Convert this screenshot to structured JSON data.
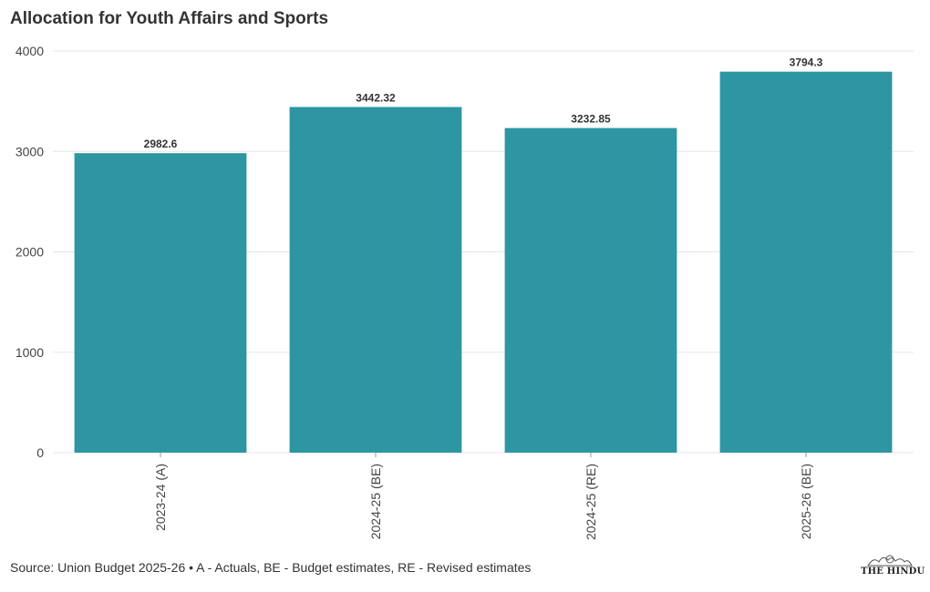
{
  "chart_data": {
    "type": "bar",
    "title": "Allocation for Youth Affairs and Sports",
    "categories": [
      "2023-24 (A)",
      "2024-25 (BE)",
      "2024-25 (RE)",
      "2025-26 (BE)"
    ],
    "values": [
      2982.6,
      3442.32,
      3232.85,
      3794.3
    ],
    "data_labels": [
      "2982.6",
      "3442.32",
      "3232.85",
      "3794.3"
    ],
    "xlabel": "",
    "ylabel": "",
    "ylim": [
      0,
      4000
    ],
    "yticks": [
      0,
      1000,
      2000,
      3000,
      4000
    ],
    "grid": true,
    "bar_color": "#2e96a3"
  },
  "footer": {
    "source": "Source: Union Budget 2025-26 • A - Actuals, BE - Budget estimates, RE - Revised estimates",
    "logo_text": "THE HINDU"
  }
}
